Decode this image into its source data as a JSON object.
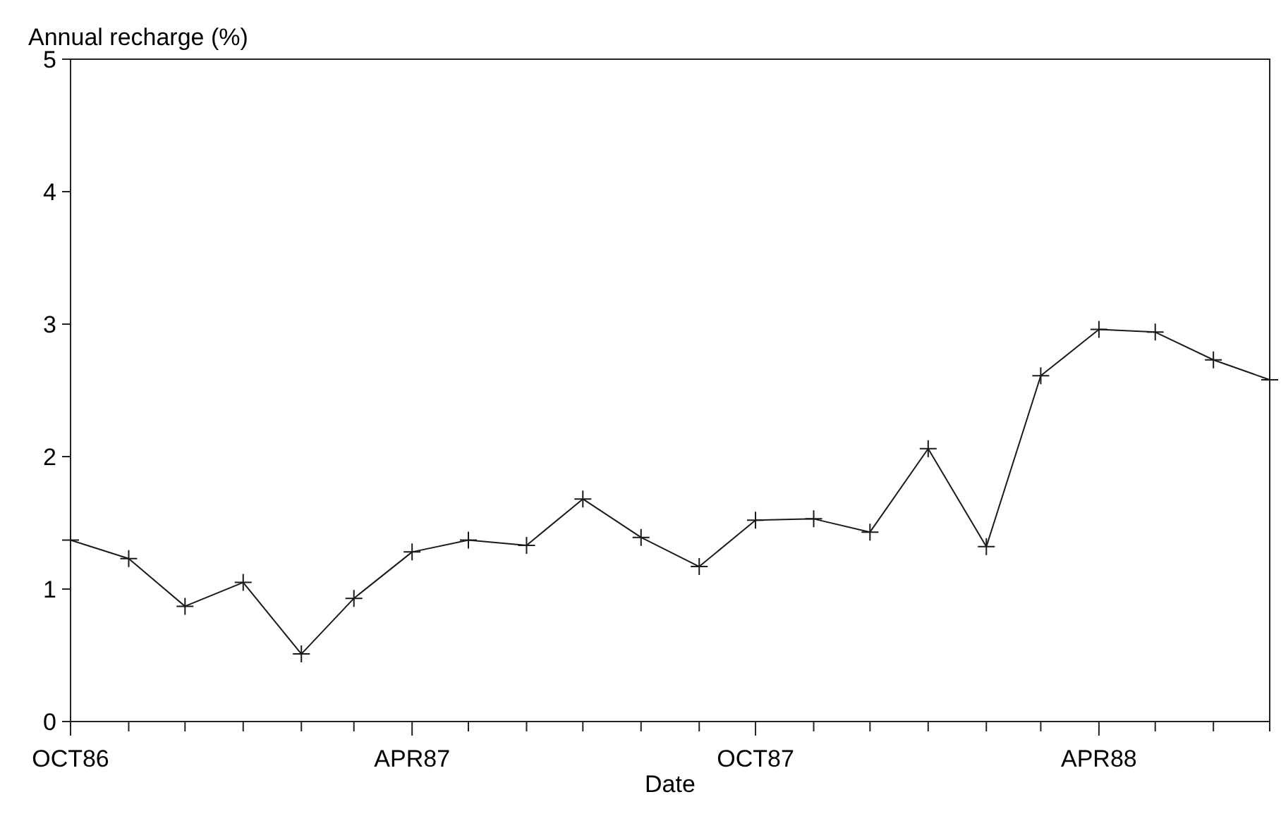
{
  "chart_data": {
    "type": "line",
    "xlabel": "Date",
    "ylabel": "Annual recharge (%)",
    "x": [
      "1986-10",
      "1986-11",
      "1986-12",
      "1987-01",
      "1987-02",
      "1987-03",
      "1987-04",
      "1987-05",
      "1987-06",
      "1987-07",
      "1987-08",
      "1987-09",
      "1987-10",
      "1987-11",
      "1987-12",
      "1988-01",
      "1988-02",
      "1988-03",
      "1988-04",
      "1988-05",
      "1988-06",
      "1988-07"
    ],
    "series": [
      {
        "color": "#1a1a1a",
        "values": [
          1.37,
          1.23,
          0.87,
          1.05,
          0.51,
          0.93,
          1.28,
          1.37,
          1.33,
          1.68,
          1.39,
          1.17,
          1.52,
          1.53,
          1.43,
          2.06,
          1.32,
          2.61,
          2.96,
          2.94,
          2.73,
          2.58
        ]
      }
    ],
    "xlim": [
      "1986-10",
      "1988-07"
    ],
    "xticks": [
      {
        "value": "1986-10",
        "label": "OCT86"
      },
      {
        "value": "1986-11",
        "label": null
      },
      {
        "value": "1986-12",
        "label": null
      },
      {
        "value": "1987-01",
        "label": null
      },
      {
        "value": "1987-02",
        "label": null
      },
      {
        "value": "1987-03",
        "label": null
      },
      {
        "value": "1987-04",
        "label": "APR87"
      },
      {
        "value": "1987-05",
        "label": null
      },
      {
        "value": "1987-06",
        "label": null
      },
      {
        "value": "1987-07",
        "label": null
      },
      {
        "value": "1987-08",
        "label": null
      },
      {
        "value": "1987-09",
        "label": null
      },
      {
        "value": "1987-10",
        "label": "OCT87"
      },
      {
        "value": "1987-11",
        "label": null
      },
      {
        "value": "1987-12",
        "label": null
      },
      {
        "value": "1988-01",
        "label": null
      },
      {
        "value": "1988-02",
        "label": null
      },
      {
        "value": "1988-03",
        "label": null
      },
      {
        "value": "1988-04",
        "label": "APR88"
      },
      {
        "value": "1988-05",
        "label": null
      },
      {
        "value": "1988-06",
        "label": null
      },
      {
        "value": "1988-07",
        "label": null
      }
    ],
    "ylim": [
      0,
      5
    ],
    "yticks": [
      0,
      1,
      2,
      3,
      4,
      5
    ],
    "grid": false,
    "marker": "cross",
    "line_style": "solid"
  }
}
